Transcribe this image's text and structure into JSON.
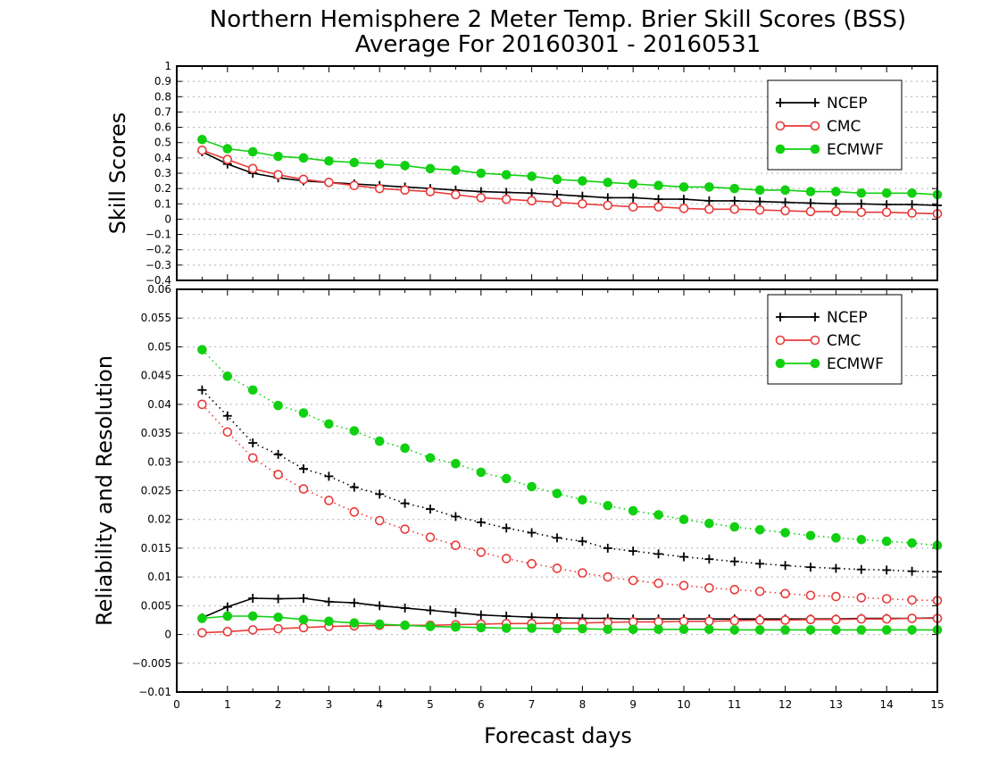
{
  "title_line1": "Northern Hemisphere 2 Meter Temp. Brier Skill Scores (BSS)",
  "title_line2": "Average For 20160301 - 20160531",
  "xlabel": "Forecast days",
  "colors": {
    "NCEP": "#000000",
    "CMC": "#e83a3a",
    "ECMWF": "#11d011"
  },
  "chart_data": [
    {
      "type": "line",
      "ylabel": "Skill Scores",
      "xlim": [
        0,
        15
      ],
      "ylim": [
        -0.4,
        1
      ],
      "x_ticks": [
        "0",
        "1",
        "2",
        "3",
        "4",
        "5",
        "6",
        "7",
        "8",
        "9",
        "10",
        "11",
        "12",
        "13",
        "14",
        "15"
      ],
      "y_ticks": [
        "−0.4",
        "−0.3",
        "−0.2",
        "−0.1",
        "0",
        "0.1",
        "0.2",
        "0.3",
        "0.4",
        "0.5",
        "0.6",
        "0.7",
        "0.8",
        "0.9",
        "1"
      ],
      "grid": true,
      "legend_position": "top-right",
      "legend": [
        "NCEP",
        "CMC",
        "ECMWF"
      ],
      "x": [
        0.5,
        1,
        1.5,
        2,
        2.5,
        3,
        3.5,
        4,
        4.5,
        5,
        5.5,
        6,
        6.5,
        7,
        7.5,
        8,
        8.5,
        9,
        9.5,
        10,
        10.5,
        11,
        11.5,
        12,
        12.5,
        13,
        13.5,
        14,
        14.5,
        15
      ],
      "series": [
        {
          "name": "NCEP",
          "marker": "plus",
          "style": "solid",
          "values": [
            0.44,
            0.36,
            0.3,
            0.27,
            0.25,
            0.24,
            0.23,
            0.22,
            0.21,
            0.2,
            0.19,
            0.18,
            0.175,
            0.17,
            0.16,
            0.15,
            0.14,
            0.14,
            0.13,
            0.13,
            0.12,
            0.12,
            0.115,
            0.11,
            0.105,
            0.1,
            0.1,
            0.095,
            0.095,
            0.09
          ]
        },
        {
          "name": "CMC",
          "marker": "open-circle",
          "style": "solid",
          "values": [
            0.45,
            0.39,
            0.33,
            0.29,
            0.26,
            0.24,
            0.22,
            0.2,
            0.19,
            0.18,
            0.16,
            0.14,
            0.13,
            0.12,
            0.11,
            0.1,
            0.09,
            0.08,
            0.08,
            0.07,
            0.065,
            0.065,
            0.06,
            0.055,
            0.05,
            0.05,
            0.045,
            0.045,
            0.04,
            0.035
          ]
        },
        {
          "name": "ECMWF",
          "marker": "filled-circle",
          "style": "solid",
          "values": [
            0.52,
            0.46,
            0.44,
            0.41,
            0.4,
            0.38,
            0.37,
            0.36,
            0.35,
            0.33,
            0.32,
            0.3,
            0.29,
            0.28,
            0.26,
            0.25,
            0.24,
            0.23,
            0.22,
            0.21,
            0.21,
            0.2,
            0.19,
            0.19,
            0.18,
            0.18,
            0.17,
            0.17,
            0.17,
            0.16
          ]
        }
      ]
    },
    {
      "type": "line",
      "ylabel": "Reliability and Resolution",
      "xlim": [
        0,
        15
      ],
      "ylim": [
        -0.01,
        0.06
      ],
      "x_ticks": [
        "0",
        "1",
        "2",
        "3",
        "4",
        "5",
        "6",
        "7",
        "8",
        "9",
        "10",
        "11",
        "12",
        "13",
        "14",
        "15"
      ],
      "y_ticks": [
        "−0.01",
        "−0.005",
        "0",
        "0.005",
        "0.01",
        "0.015",
        "0.02",
        "0.025",
        "0.03",
        "0.035",
        "0.04",
        "0.045",
        "0.05",
        "0.055",
        "0.06"
      ],
      "grid": true,
      "legend_position": "top-right",
      "legend": [
        "NCEP",
        "CMC",
        "ECMWF"
      ],
      "x": [
        0.5,
        1,
        1.5,
        2,
        2.5,
        3,
        3.5,
        4,
        4.5,
        5,
        5.5,
        6,
        6.5,
        7,
        7.5,
        8,
        8.5,
        9,
        9.5,
        10,
        10.5,
        11,
        11.5,
        12,
        12.5,
        13,
        13.5,
        14,
        14.5,
        15
      ],
      "series": [
        {
          "name": "NCEP",
          "group": "resolution",
          "marker": "plus",
          "style": "dotted",
          "values": [
            0.0425,
            0.038,
            0.0333,
            0.0313,
            0.0288,
            0.0275,
            0.0256,
            0.0244,
            0.0228,
            0.0218,
            0.0205,
            0.0195,
            0.0185,
            0.0177,
            0.0168,
            0.0162,
            0.015,
            0.0145,
            0.014,
            0.0135,
            0.0131,
            0.0127,
            0.0123,
            0.012,
            0.0117,
            0.0115,
            0.0113,
            0.0112,
            0.011,
            0.0109
          ]
        },
        {
          "name": "CMC",
          "group": "resolution",
          "marker": "open-circle",
          "style": "dotted",
          "values": [
            0.04,
            0.0352,
            0.0307,
            0.0278,
            0.0253,
            0.0233,
            0.0213,
            0.0198,
            0.0183,
            0.0169,
            0.0155,
            0.0143,
            0.0132,
            0.0123,
            0.0115,
            0.0107,
            0.01,
            0.0094,
            0.0089,
            0.0085,
            0.0081,
            0.0078,
            0.0075,
            0.0071,
            0.0068,
            0.0066,
            0.0064,
            0.0062,
            0.006,
            0.0059
          ]
        },
        {
          "name": "ECMWF",
          "group": "resolution",
          "marker": "filled-circle",
          "style": "dotted",
          "values": [
            0.0495,
            0.0449,
            0.0425,
            0.0398,
            0.0385,
            0.0366,
            0.0354,
            0.0336,
            0.0324,
            0.0307,
            0.0297,
            0.0282,
            0.0271,
            0.0257,
            0.0245,
            0.0234,
            0.0224,
            0.0215,
            0.0208,
            0.02,
            0.0193,
            0.0187,
            0.0182,
            0.0177,
            0.0172,
            0.0168,
            0.0165,
            0.0162,
            0.0159,
            0.0155
          ]
        },
        {
          "name": "NCEP",
          "group": "reliability",
          "marker": "plus",
          "style": "solid",
          "values": [
            0.0029,
            0.0048,
            0.0063,
            0.0062,
            0.0063,
            0.0057,
            0.0055,
            0.005,
            0.0046,
            0.0042,
            0.0038,
            0.0034,
            0.0032,
            0.003,
            0.0029,
            0.0028,
            0.0028,
            0.0027,
            0.0027,
            0.0027,
            0.0027,
            0.0027,
            0.0027,
            0.0027,
            0.0027,
            0.0027,
            0.0028,
            0.0028,
            0.0028,
            0.0029
          ]
        },
        {
          "name": "CMC",
          "group": "reliability",
          "marker": "open-circle",
          "style": "solid",
          "values": [
            0.0003,
            0.0005,
            0.0008,
            0.001,
            0.0012,
            0.0014,
            0.0015,
            0.0016,
            0.0016,
            0.0016,
            0.0017,
            0.0018,
            0.0019,
            0.0019,
            0.002,
            0.002,
            0.0021,
            0.0022,
            0.0022,
            0.0023,
            0.0023,
            0.0024,
            0.0025,
            0.0025,
            0.0026,
            0.0026,
            0.0027,
            0.0027,
            0.0028,
            0.0028
          ]
        },
        {
          "name": "ECMWF",
          "group": "reliability",
          "marker": "filled-circle",
          "style": "solid",
          "values": [
            0.0028,
            0.0032,
            0.0032,
            0.003,
            0.0026,
            0.0023,
            0.002,
            0.0018,
            0.0016,
            0.0014,
            0.0013,
            0.0012,
            0.0011,
            0.0011,
            0.001,
            0.001,
            0.0009,
            0.0009,
            0.0009,
            0.0009,
            0.0009,
            0.0008,
            0.0008,
            0.0008,
            0.0008,
            0.0008,
            0.0008,
            0.0008,
            0.0008,
            0.0008
          ]
        }
      ]
    }
  ]
}
